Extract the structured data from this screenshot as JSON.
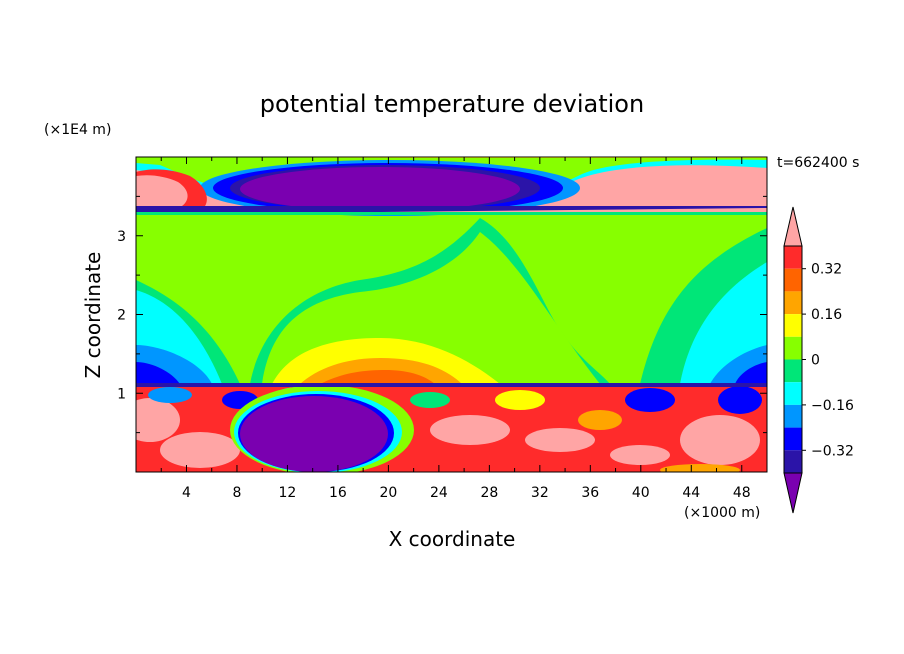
{
  "chart_data": {
    "type": "heatmap",
    "title": "potential temperature deviation",
    "xlabel": "X coordinate",
    "ylabel": "Z coordinate",
    "x_unit": "(×1000 m)",
    "y_unit": "(×1E4 m)",
    "time_label": "t=662400 s",
    "xlim": [
      0,
      50
    ],
    "ylim": [
      0,
      4
    ],
    "x_ticks": [
      "4",
      "8",
      "12",
      "16",
      "20",
      "24",
      "28",
      "32",
      "36",
      "40",
      "44",
      "48"
    ],
    "y_ticks": [
      "1",
      "2",
      "3"
    ],
    "colorbar": {
      "tick_labels": [
        "0.32",
        "0.16",
        "0",
        "−0.16",
        "−0.32"
      ],
      "tick_values": [
        0.32,
        0.16,
        0,
        -0.16,
        -0.32
      ],
      "levels": [
        -0.4,
        -0.32,
        -0.24,
        -0.16,
        -0.08,
        0,
        0.08,
        0.16,
        0.24,
        0.32,
        0.4
      ],
      "colors": [
        "#7a00b0",
        "#2b14a8",
        "#0000ff",
        "#0096ff",
        "#00ffff",
        "#00e678",
        "#87ff00",
        "#ffff00",
        "#ffa500",
        "#ff6400",
        "#ff2b2b",
        "#ffa5a5"
      ]
    }
  }
}
